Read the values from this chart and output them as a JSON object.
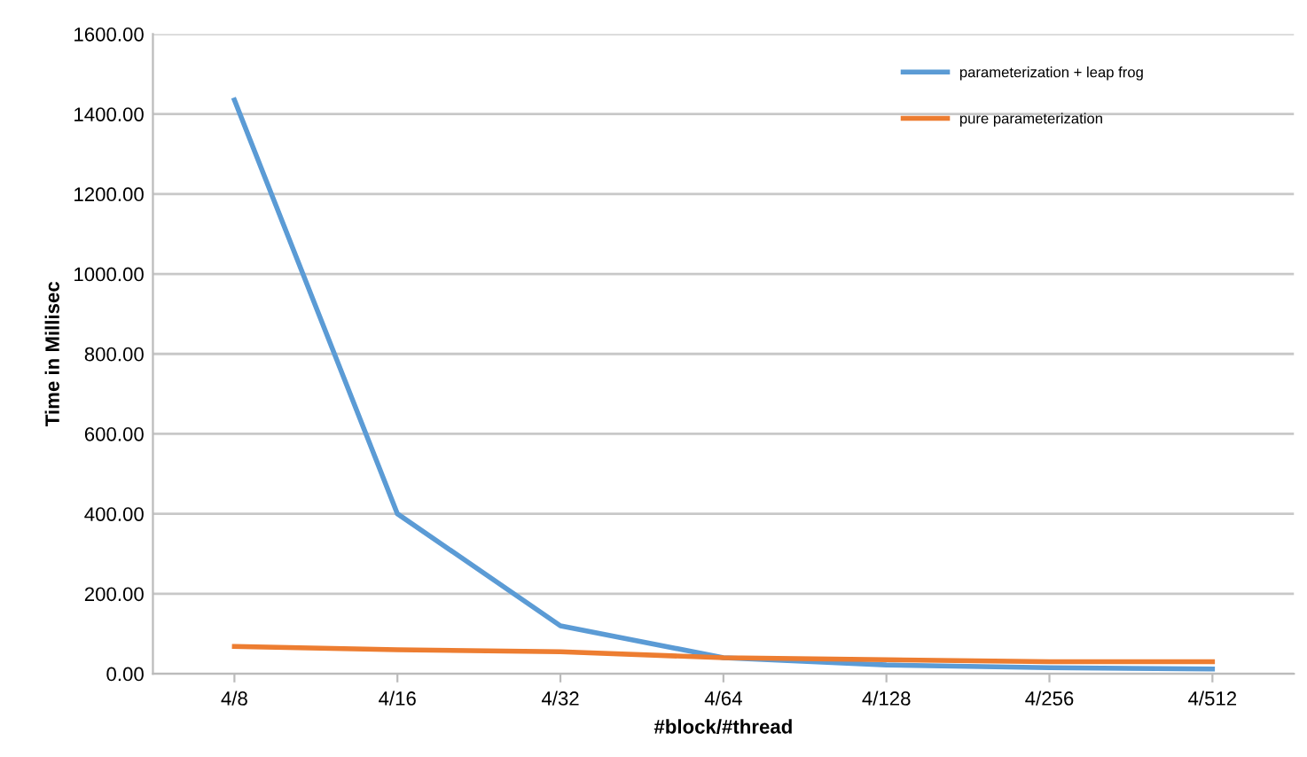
{
  "chart_data": {
    "type": "line",
    "xlabel": "#block/#thread",
    "ylabel": "Time in Millisec",
    "categories": [
      "4/8",
      "4/16",
      "4/32",
      "4/64",
      "4/128",
      "4/256",
      "4/512"
    ],
    "series": [
      {
        "name": "parameterization + leap frog",
        "color": "#5b9bd5",
        "values": [
          1435,
          400,
          120,
          40,
          22,
          15,
          12
        ]
      },
      {
        "name": "pure parameterization",
        "color": "#ed7d31",
        "values": [
          68,
          60,
          55,
          40,
          35,
          30,
          30
        ]
      }
    ],
    "ylim": [
      0,
      1600
    ],
    "yticks": [
      {
        "value": 0,
        "label": "0.00"
      },
      {
        "value": 200,
        "label": "200.00"
      },
      {
        "value": 400,
        "label": "400.00"
      },
      {
        "value": 600,
        "label": "600.00"
      },
      {
        "value": 800,
        "label": "800.00"
      },
      {
        "value": 1000,
        "label": "1000.00"
      },
      {
        "value": 1200,
        "label": "1200.00"
      },
      {
        "value": 1400,
        "label": "1400.00"
      },
      {
        "value": 1600,
        "label": "1600.00"
      }
    ],
    "grid": "y",
    "legend": "top right",
    "marker": "none",
    "line_style": "solid"
  }
}
